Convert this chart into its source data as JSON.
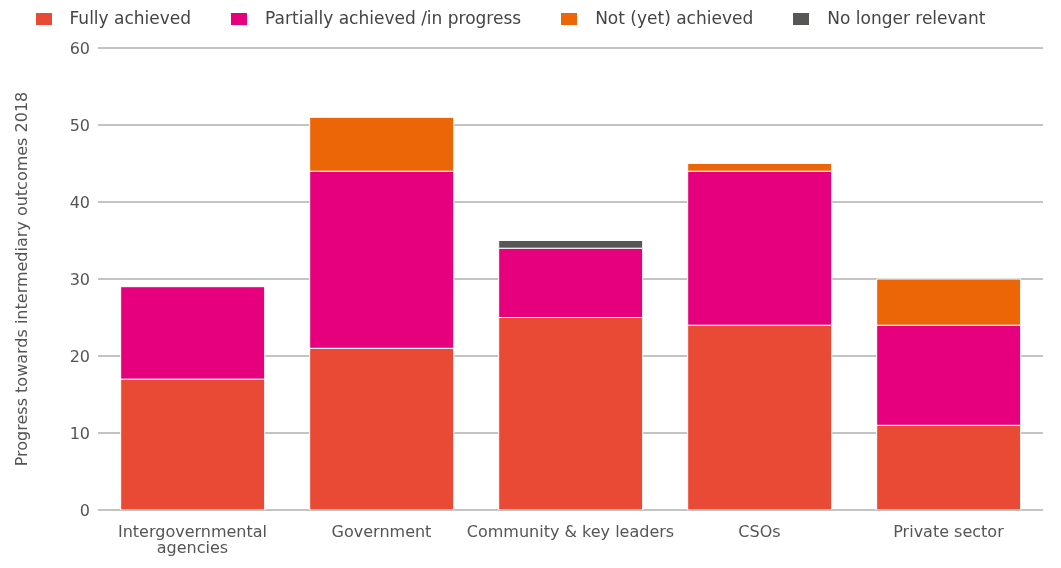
{
  "chart_data": {
    "type": "bar",
    "stacked": true,
    "ylabel": "Progress towards intermediary outcomes 2018",
    "categories": [
      "Intergovernmental agencies",
      "Government",
      "Community & key leaders",
      "CSOs",
      "Private sector"
    ],
    "series": [
      {
        "name": "Fully achieved",
        "color": "#e84a36",
        "values": [
          17,
          21,
          25,
          24,
          11
        ]
      },
      {
        "name": "Partially achieved /in progress",
        "color": "#e6007e",
        "values": [
          12,
          23,
          9,
          20,
          13
        ]
      },
      {
        "name": "Not (yet) achieved",
        "color": "#ec6608",
        "values": [
          0,
          7,
          0,
          1,
          6
        ]
      },
      {
        "name": "No longer relevant",
        "color": "#575756",
        "values": [
          0,
          0,
          1,
          0,
          0
        ]
      }
    ],
    "ylim": [
      0,
      60
    ],
    "yticks": [
      0,
      10,
      20,
      30,
      40,
      50,
      60
    ],
    "grid": "y",
    "legend": "top"
  }
}
